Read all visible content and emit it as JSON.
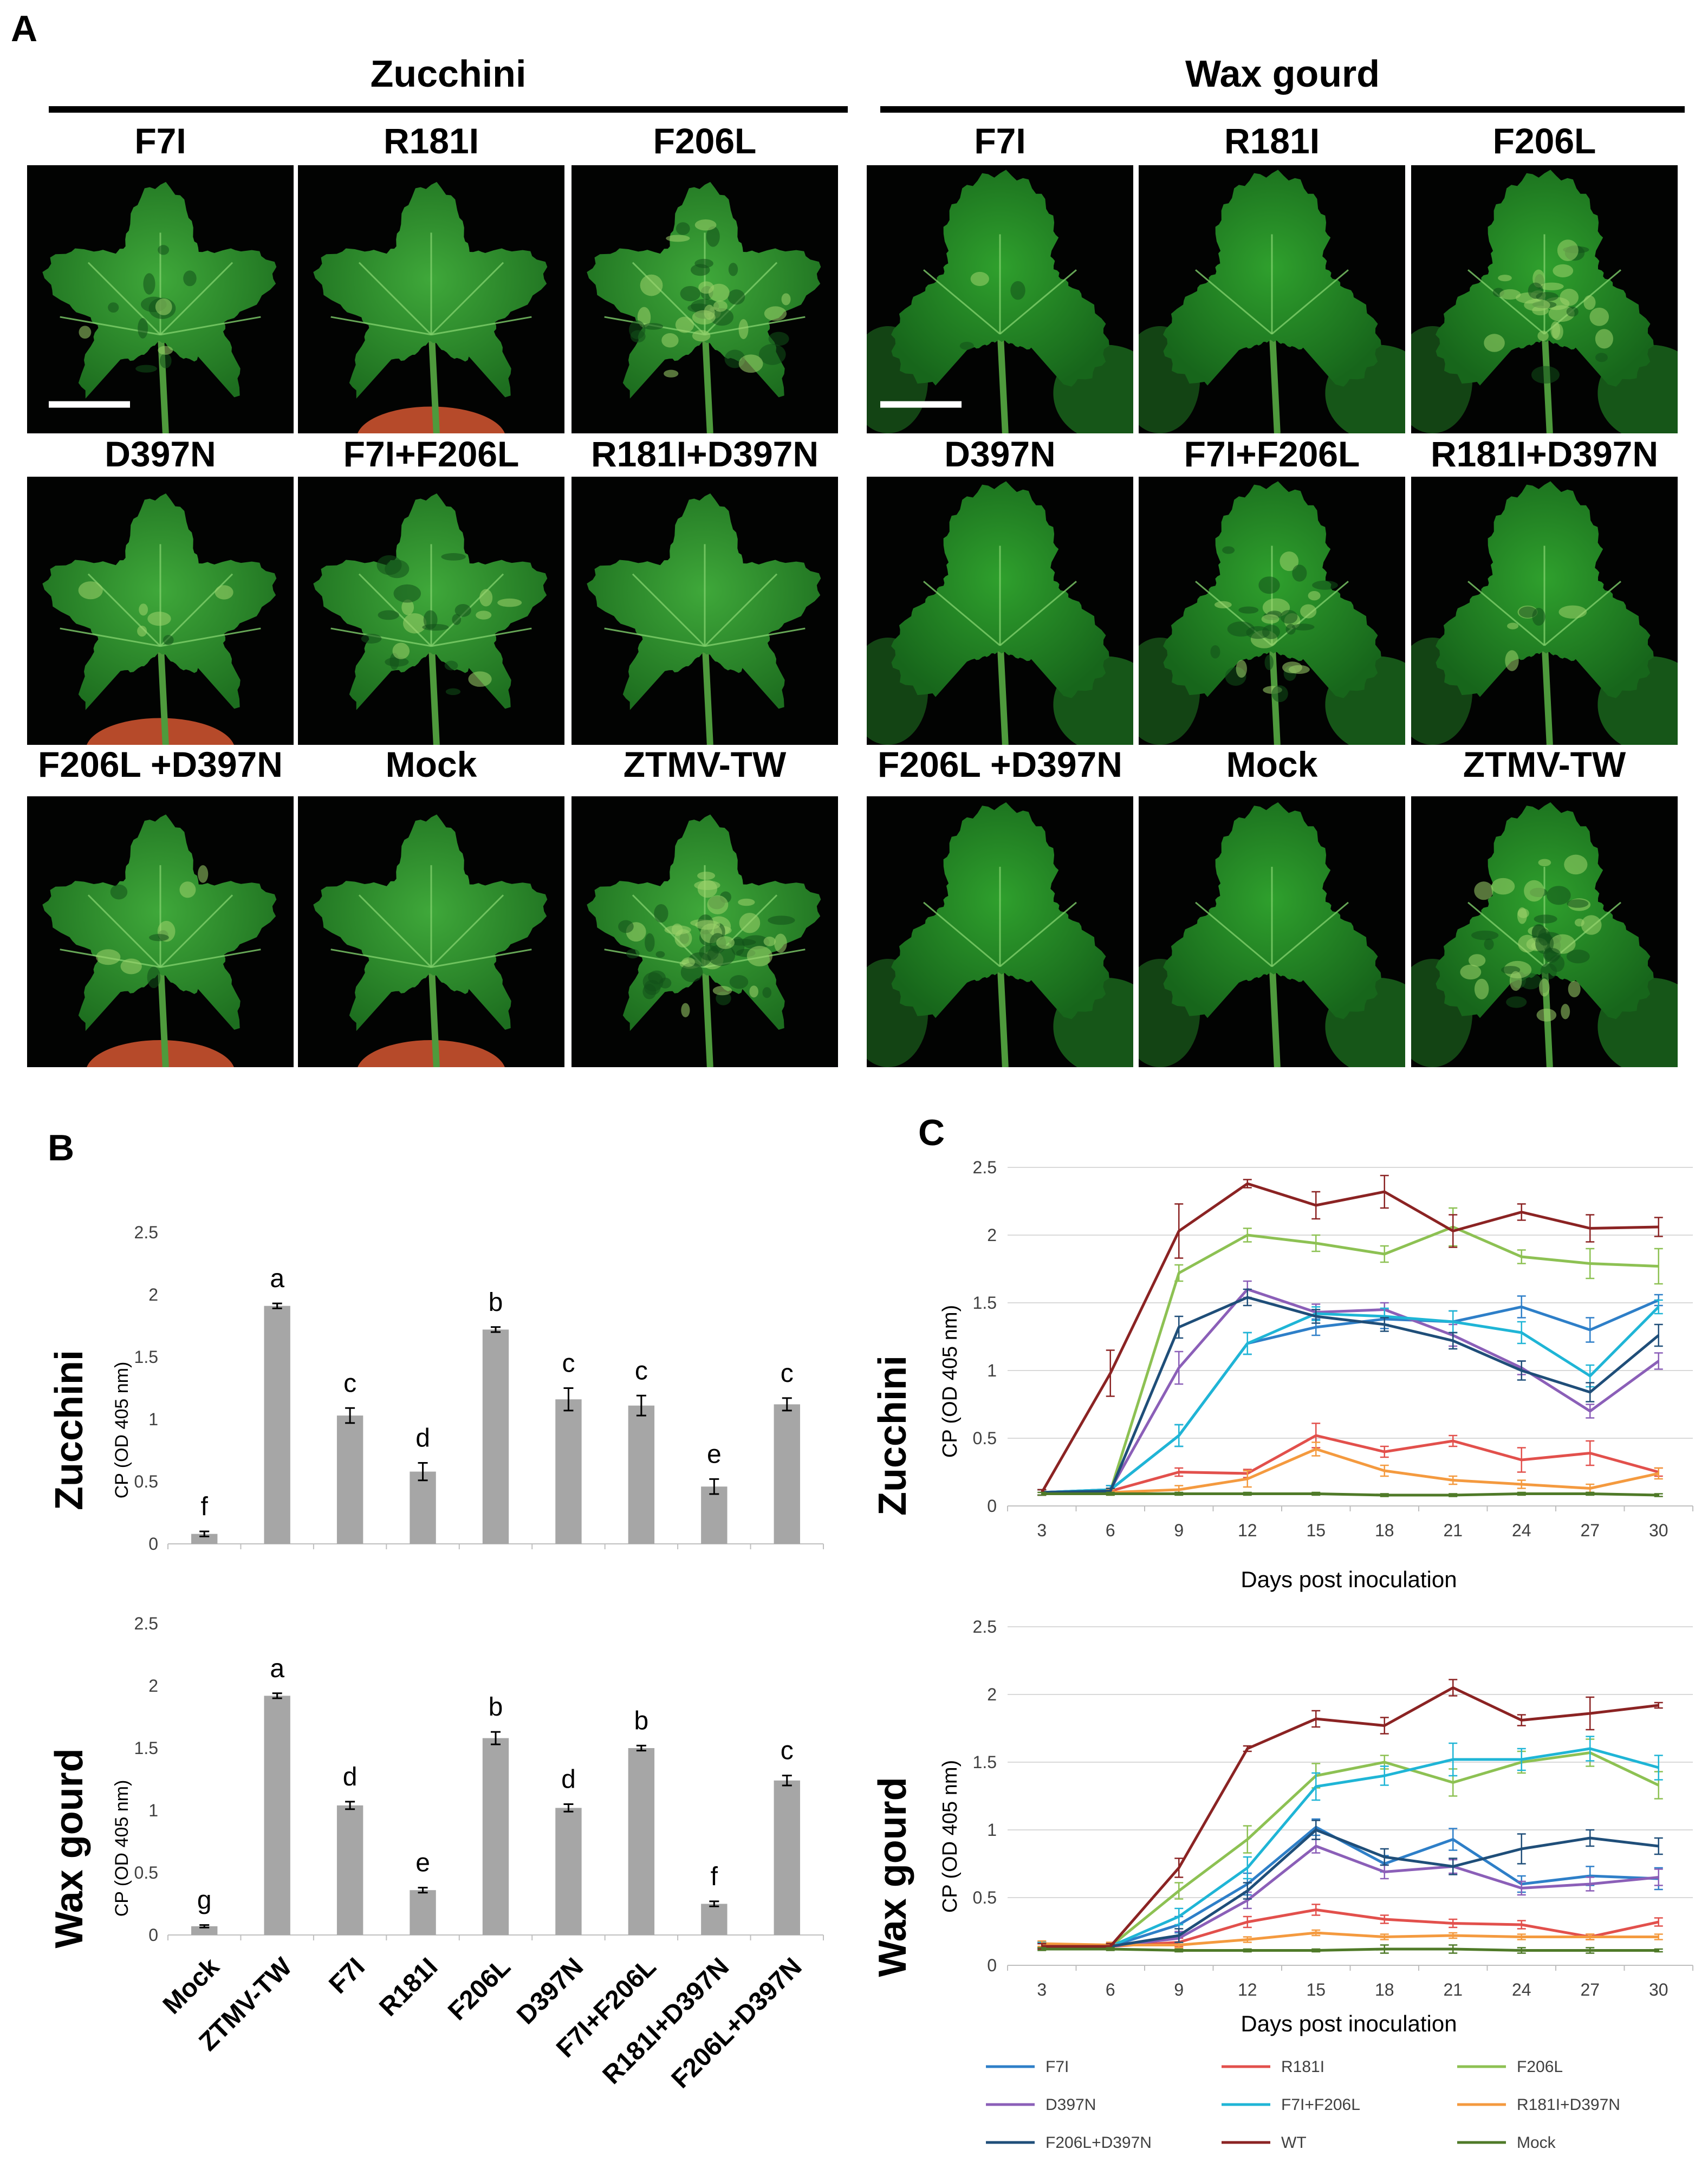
{
  "panel_labels": {
    "a": "A",
    "b": "B",
    "c": "C"
  },
  "panel_a": {
    "groups": [
      {
        "title": "Zucchini",
        "leaves": [
          {
            "label": "F7I",
            "mottle": 0.2
          },
          {
            "label": "R181I",
            "mottle": 0.0
          },
          {
            "label": "F206L",
            "mottle": 0.6
          },
          {
            "label": "D397N",
            "mottle": 0.1
          },
          {
            "label": "F7I+F206L",
            "mottle": 0.35
          },
          {
            "label": "R181I+D397N",
            "mottle": 0.0
          },
          {
            "label": "F206L +D397N",
            "mottle": 0.15
          },
          {
            "label": "Mock",
            "mottle": 0.0
          },
          {
            "label": "ZTMV-TW",
            "mottle": 0.9
          }
        ]
      },
      {
        "title": "Wax gourd",
        "leaves": [
          {
            "label": "F7I",
            "mottle": 0.05
          },
          {
            "label": "R181I",
            "mottle": 0.0
          },
          {
            "label": "F206L",
            "mottle": 0.5
          },
          {
            "label": "D397N",
            "mottle": 0.0
          },
          {
            "label": "F7I+F206L",
            "mottle": 0.5
          },
          {
            "label": "R181I+D397N",
            "mottle": 0.1
          },
          {
            "label": "F206L +D397N",
            "mottle": 0.0
          },
          {
            "label": "Mock",
            "mottle": 0.0
          },
          {
            "label": "ZTMV-TW",
            "mottle": 0.8
          }
        ]
      }
    ]
  },
  "chart_data": [
    {
      "id": "B-zucchini",
      "type": "bar",
      "row_label": "Zucchini",
      "ylabel": "CP (OD 405 nm)",
      "ylim": [
        0,
        2.5
      ],
      "yticks": [
        "0",
        "0.5",
        "1",
        "1.5",
        "2",
        "2.5"
      ],
      "categories": [
        "Mock",
        "ZTMV-TW",
        "F7I",
        "R181I",
        "F206L",
        "D397N",
        "F7I+F206L",
        "R181I+D397N",
        "F206L+D397N"
      ],
      "values": [
        0.08,
        1.91,
        1.03,
        0.58,
        1.72,
        1.16,
        1.11,
        0.46,
        1.12
      ],
      "errors": [
        0.02,
        0.02,
        0.06,
        0.07,
        0.02,
        0.09,
        0.08,
        0.06,
        0.05
      ],
      "letters": [
        "f",
        "a",
        "c",
        "d",
        "b",
        "c",
        "c",
        "e",
        "c"
      ],
      "bar_color": "#a6a6a6",
      "grid": false,
      "legend": "none"
    },
    {
      "id": "B-waxgourd",
      "type": "bar",
      "row_label": "Wax gourd",
      "ylabel": "CP (OD 405 nm)",
      "ylim": [
        0,
        2.5
      ],
      "yticks": [
        "0",
        "0.5",
        "1",
        "1.5",
        "2",
        "2.5"
      ],
      "categories": [
        "Mock",
        "ZTMV-TW",
        "F7I",
        "R181I",
        "F206L",
        "D397N",
        "F7I+F206L",
        "R181I+D397N",
        "F206L+D397N"
      ],
      "values": [
        0.07,
        1.92,
        1.04,
        0.36,
        1.58,
        1.02,
        1.5,
        0.25,
        1.24
      ],
      "errors": [
        0.01,
        0.02,
        0.03,
        0.02,
        0.05,
        0.03,
        0.02,
        0.02,
        0.04
      ],
      "letters": [
        "g",
        "a",
        "d",
        "e",
        "b",
        "d",
        "b",
        "f",
        "c"
      ],
      "bar_color": "#a6a6a6",
      "grid": false,
      "legend": "none"
    },
    {
      "id": "C-zucchini",
      "type": "line",
      "row_label": "Zucchini",
      "ylabel": "CP (OD 405 nm)",
      "xlabel": "Days post inoculation",
      "x": [
        3,
        6,
        9,
        12,
        15,
        18,
        21,
        24,
        27,
        30
      ],
      "ylim": [
        0,
        2.5
      ],
      "yticks": [
        "0",
        "0.5",
        "1",
        "1.5",
        "2",
        "2.5"
      ],
      "grid": "horizontal",
      "legend": "bottom",
      "series": [
        {
          "name": "F7I",
          "color": "#2e7fc8",
          "values": [
            0.1,
            0.12,
            0.52,
            1.2,
            1.32,
            1.38,
            1.36,
            1.47,
            1.3,
            1.52
          ],
          "errors": [
            0.02,
            0.03,
            0.08,
            0.08,
            0.06,
            0.07,
            0.08,
            0.08,
            0.09,
            0.04
          ]
        },
        {
          "name": "R181I",
          "color": "#e2504c",
          "values": [
            0.1,
            0.11,
            0.25,
            0.24,
            0.52,
            0.4,
            0.48,
            0.34,
            0.39,
            0.25
          ],
          "errors": [
            0.02,
            0.02,
            0.03,
            0.03,
            0.09,
            0.04,
            0.04,
            0.09,
            0.09,
            0.03
          ]
        },
        {
          "name": "F206L",
          "color": "#8dc153",
          "values": [
            0.1,
            0.11,
            1.72,
            2.0,
            1.94,
            1.86,
            2.06,
            1.84,
            1.79,
            1.77
          ],
          "errors": [
            0.02,
            0.02,
            0.06,
            0.05,
            0.06,
            0.06,
            0.14,
            0.05,
            0.11,
            0.13
          ]
        },
        {
          "name": "D397N",
          "color": "#8b5fb8",
          "values": [
            0.1,
            0.12,
            1.02,
            1.6,
            1.43,
            1.45,
            1.26,
            1.02,
            0.7,
            1.07
          ],
          "errors": [
            0.02,
            0.03,
            0.12,
            0.06,
            0.06,
            0.05,
            0.08,
            0.05,
            0.05,
            0.06
          ]
        },
        {
          "name": "F7I+F206L",
          "color": "#1fb5d6",
          "values": [
            0.1,
            0.12,
            0.52,
            1.2,
            1.42,
            1.4,
            1.36,
            1.28,
            0.96,
            1.47
          ],
          "errors": [
            0.02,
            0.03,
            0.08,
            0.08,
            0.05,
            0.06,
            0.08,
            0.08,
            0.08,
            0.05
          ]
        },
        {
          "name": "R181I+D397N",
          "color": "#f49a3f",
          "values": [
            0.1,
            0.1,
            0.12,
            0.2,
            0.42,
            0.26,
            0.19,
            0.16,
            0.13,
            0.24
          ],
          "errors": [
            0.02,
            0.02,
            0.03,
            0.06,
            0.05,
            0.04,
            0.03,
            0.03,
            0.03,
            0.04
          ]
        },
        {
          "name": "F206L+D397N",
          "color": "#1f4e79",
          "values": [
            0.1,
            0.11,
            1.32,
            1.54,
            1.4,
            1.34,
            1.22,
            1.0,
            0.84,
            1.26
          ],
          "errors": [
            0.02,
            0.02,
            0.08,
            0.06,
            0.05,
            0.05,
            0.06,
            0.07,
            0.07,
            0.08
          ]
        },
        {
          "name": "WT",
          "color": "#8b2323",
          "values": [
            0.1,
            0.98,
            2.03,
            2.38,
            2.22,
            2.32,
            2.03,
            2.17,
            2.05,
            2.06
          ],
          "errors": [
            0.02,
            0.17,
            0.2,
            0.03,
            0.1,
            0.12,
            0.12,
            0.06,
            0.1,
            0.07
          ]
        },
        {
          "name": "Mock",
          "color": "#4f7a28",
          "values": [
            0.09,
            0.09,
            0.09,
            0.09,
            0.09,
            0.08,
            0.08,
            0.09,
            0.09,
            0.08
          ],
          "errors": [
            0.01,
            0.01,
            0.01,
            0.01,
            0.01,
            0.01,
            0.01,
            0.01,
            0.01,
            0.01
          ]
        }
      ]
    },
    {
      "id": "C-waxgourd",
      "type": "line",
      "row_label": "Wax gourd",
      "ylabel": "CP (OD 405 nm)",
      "xlabel": "Days post inoculation",
      "x": [
        3,
        6,
        9,
        12,
        15,
        18,
        21,
        24,
        27,
        30
      ],
      "ylim": [
        0,
        2.5
      ],
      "yticks": [
        "0",
        "0.5",
        "1",
        "1.5",
        "2",
        "2.5"
      ],
      "grid": "horizontal",
      "legend": "bottom",
      "series": [
        {
          "name": "F7I",
          "color": "#2e7fc8",
          "values": [
            0.15,
            0.14,
            0.3,
            0.6,
            1.02,
            0.75,
            0.93,
            0.6,
            0.66,
            0.64
          ],
          "errors": [
            0.02,
            0.02,
            0.06,
            0.08,
            0.06,
            0.06,
            0.08,
            0.06,
            0.07,
            0.08
          ]
        },
        {
          "name": "R181I",
          "color": "#e2504c",
          "values": [
            0.15,
            0.14,
            0.17,
            0.32,
            0.41,
            0.34,
            0.31,
            0.3,
            0.21,
            0.32
          ],
          "errors": [
            0.02,
            0.02,
            0.03,
            0.04,
            0.04,
            0.03,
            0.03,
            0.03,
            0.02,
            0.03
          ]
        },
        {
          "name": "F206L",
          "color": "#8dc153",
          "values": [
            0.15,
            0.14,
            0.55,
            0.93,
            1.4,
            1.5,
            1.35,
            1.5,
            1.57,
            1.33
          ],
          "errors": [
            0.02,
            0.02,
            0.06,
            0.1,
            0.09,
            0.05,
            0.1,
            0.08,
            0.1,
            0.1
          ]
        },
        {
          "name": "D397N",
          "color": "#8b5fb8",
          "values": [
            0.15,
            0.14,
            0.2,
            0.48,
            0.88,
            0.69,
            0.73,
            0.57,
            0.6,
            0.65
          ],
          "errors": [
            0.02,
            0.02,
            0.05,
            0.06,
            0.05,
            0.05,
            0.05,
            0.05,
            0.05,
            0.06
          ]
        },
        {
          "name": "F7I+F206L",
          "color": "#1fb5d6",
          "values": [
            0.15,
            0.14,
            0.36,
            0.72,
            1.32,
            1.4,
            1.52,
            1.52,
            1.6,
            1.46
          ],
          "errors": [
            0.02,
            0.02,
            0.06,
            0.08,
            0.1,
            0.07,
            0.12,
            0.08,
            0.09,
            0.09
          ]
        },
        {
          "name": "R181I+D397N",
          "color": "#f49a3f",
          "values": [
            0.16,
            0.15,
            0.15,
            0.19,
            0.24,
            0.21,
            0.22,
            0.21,
            0.21,
            0.21
          ],
          "errors": [
            0.02,
            0.02,
            0.02,
            0.02,
            0.02,
            0.02,
            0.02,
            0.02,
            0.02,
            0.02
          ]
        },
        {
          "name": "F206L+D397N",
          "color": "#1f4e79",
          "values": [
            0.14,
            0.14,
            0.22,
            0.55,
            1.0,
            0.8,
            0.73,
            0.86,
            0.94,
            0.88
          ],
          "errors": [
            0.02,
            0.02,
            0.05,
            0.06,
            0.07,
            0.06,
            0.06,
            0.11,
            0.06,
            0.06
          ]
        },
        {
          "name": "WT",
          "color": "#8b2323",
          "values": [
            0.14,
            0.14,
            0.72,
            1.6,
            1.82,
            1.77,
            2.05,
            1.81,
            1.86,
            1.92
          ],
          "errors": [
            0.02,
            0.02,
            0.07,
            0.02,
            0.06,
            0.06,
            0.06,
            0.04,
            0.12,
            0.02
          ]
        },
        {
          "name": "Mock",
          "color": "#4f7a28",
          "values": [
            0.12,
            0.12,
            0.11,
            0.11,
            0.11,
            0.12,
            0.12,
            0.11,
            0.11,
            0.11
          ],
          "errors": [
            0.01,
            0.01,
            0.01,
            0.01,
            0.01,
            0.03,
            0.03,
            0.02,
            0.02,
            0.01
          ]
        }
      ]
    }
  ]
}
